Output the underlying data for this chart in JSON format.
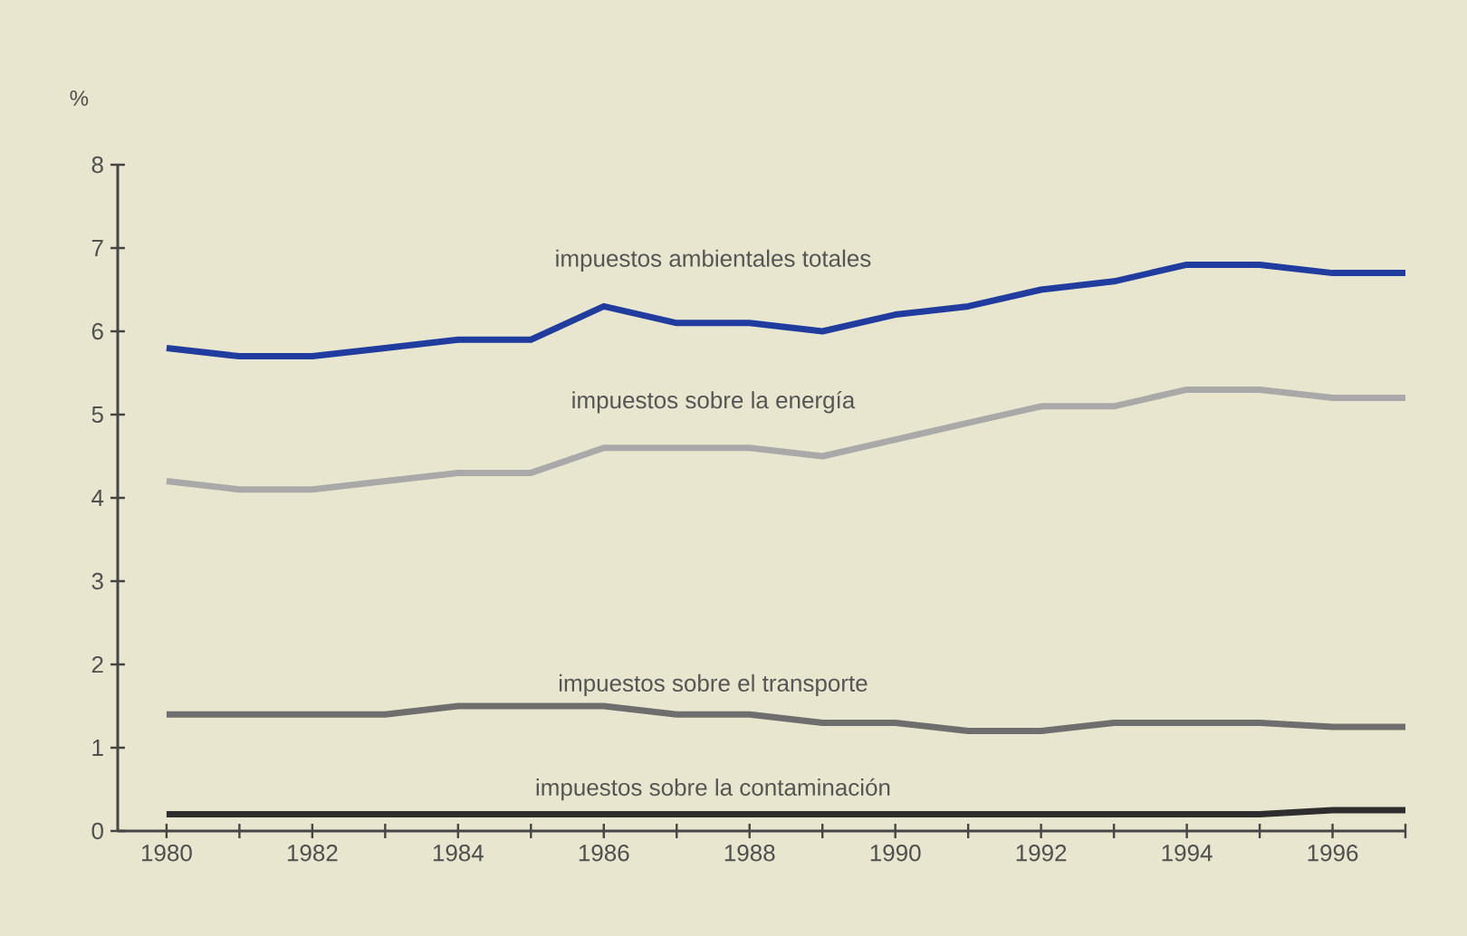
{
  "chart_data": {
    "type": "line",
    "ylabel": "%",
    "x": [
      1980,
      1981,
      1982,
      1983,
      1984,
      1985,
      1986,
      1987,
      1988,
      1989,
      1990,
      1991,
      1992,
      1993,
      1994,
      1995,
      1996,
      1997
    ],
    "series": [
      {
        "name": "impuestos ambientales totales",
        "color": "#1f3c9e",
        "values": [
          5.8,
          5.7,
          5.7,
          5.8,
          5.9,
          5.9,
          6.3,
          6.1,
          6.1,
          6.0,
          6.2,
          6.3,
          6.5,
          6.6,
          6.8,
          6.8,
          6.7,
          6.7
        ]
      },
      {
        "name": "impuestos sobre la energía",
        "color": "#a9a9a9",
        "values": [
          4.2,
          4.1,
          4.1,
          4.2,
          4.3,
          4.3,
          4.6,
          4.6,
          4.6,
          4.5,
          4.7,
          4.9,
          5.1,
          5.1,
          5.3,
          5.3,
          5.2,
          5.2
        ]
      },
      {
        "name": "impuestos sobre el transporte",
        "color": "#6e6e6e",
        "values": [
          1.4,
          1.4,
          1.4,
          1.4,
          1.5,
          1.5,
          1.5,
          1.4,
          1.4,
          1.3,
          1.3,
          1.2,
          1.2,
          1.3,
          1.3,
          1.3,
          1.25,
          1.25
        ]
      },
      {
        "name": "impuestos sobre la contaminación",
        "color": "#2e2e2e",
        "values": [
          0.2,
          0.2,
          0.2,
          0.2,
          0.2,
          0.2,
          0.2,
          0.2,
          0.2,
          0.2,
          0.2,
          0.2,
          0.2,
          0.2,
          0.2,
          0.2,
          0.25,
          0.25
        ]
      }
    ],
    "xlim": [
      1979.33,
      1997
    ],
    "xticks": [
      1980,
      {
        "value": 1981,
        "label": null
      },
      1982,
      {
        "value": 1983,
        "label": null
      },
      1984,
      {
        "value": 1985,
        "label": null
      },
      1986,
      {
        "value": 1987,
        "label": null
      },
      1988,
      {
        "value": 1989,
        "label": null
      },
      1990,
      {
        "value": 1991,
        "label": null
      },
      1992,
      {
        "value": 1993,
        "label": null
      },
      1994,
      {
        "value": 1995,
        "label": null
      },
      1996,
      {
        "value": 1997,
        "label": null
      }
    ],
    "ylim": [
      0,
      8
    ],
    "yticks": [
      0,
      1,
      2,
      3,
      4,
      5,
      6,
      7,
      8
    ],
    "grid": false,
    "marker": "none",
    "line_style": "solid"
  }
}
